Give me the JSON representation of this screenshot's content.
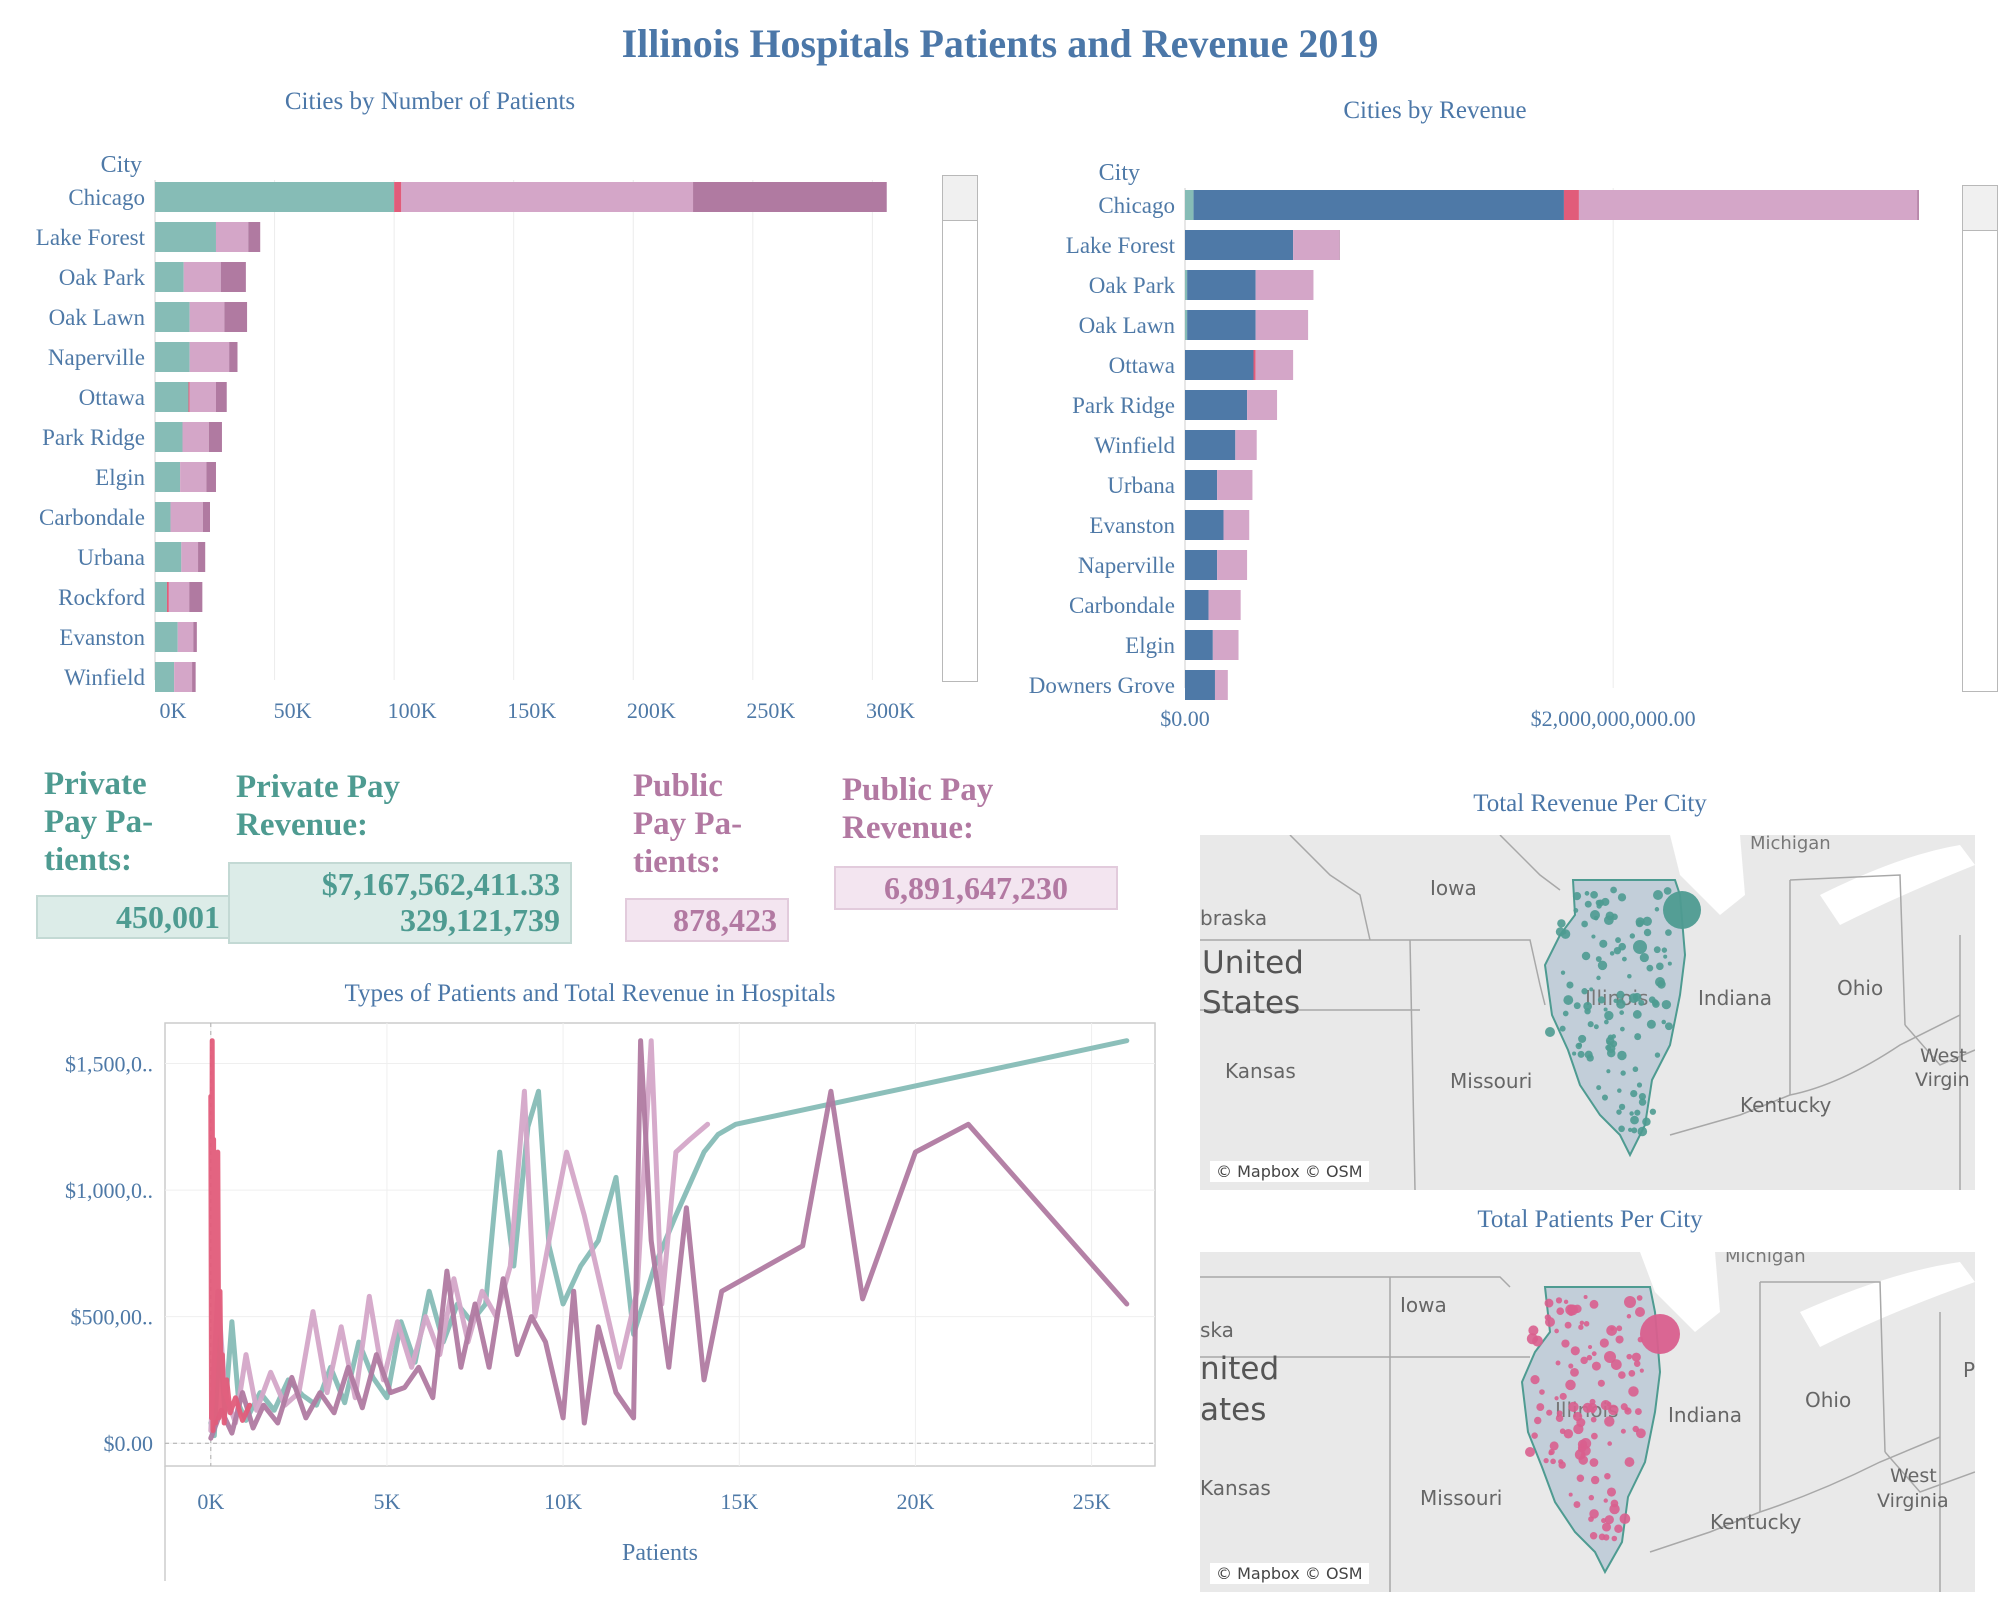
{
  "title": "Illinois Hospitals Patients and Revenue 2019",
  "colors": {
    "teal": "#86bcb6",
    "pink_light": "#d4a6c8",
    "mauve": "#b07aa1",
    "red": "#e15c7a",
    "blue": "#4e79a7"
  },
  "patients_chart": {
    "title": "Cities by Number of Patients",
    "header": "City",
    "ticks": [
      "0K",
      "50K",
      "100K",
      "150K",
      "200K",
      "250K",
      "300K"
    ],
    "tick_values": [
      0,
      50000,
      100000,
      150000,
      200000,
      250000,
      300000
    ],
    "xlim": [
      0,
      322000
    ]
  },
  "revenue_chart": {
    "title": "Cities by Revenue",
    "header": "City",
    "ticks": [
      "$0.00",
      "$2,000,000,000.00"
    ],
    "tick_values": [
      0,
      2000000000
    ],
    "xlim": [
      0,
      3620000000
    ]
  },
  "kpis": {
    "private_patients_label": "Private Pay Pa-tients:",
    "private_patients_value": "450,001",
    "private_revenue_label": "Private Pay Revenue:",
    "private_revenue_value_1": "$7,167,562,411.33",
    "private_revenue_value_2": "329,121,739",
    "public_patients_label": "Public Pay Pa-tients:",
    "public_patients_value": "878,423",
    "public_revenue_label": "Public Pay Revenue:",
    "public_revenue_value": "6,891,647,230"
  },
  "line_chart": {
    "title": "Types of Patients and Total Revenue in Hospitals",
    "xlabel": "Patients",
    "xticks": [
      "0K",
      "5K",
      "10K",
      "15K",
      "20K",
      "25K"
    ],
    "xtick_values": [
      0,
      5000,
      10000,
      15000,
      20000,
      25000
    ],
    "yticks": [
      "$0.00",
      "$500,00..",
      "$1,000,0..",
      "$1,500,0.."
    ],
    "ytick_values": [
      0,
      500000000,
      1000000000,
      1500000000
    ],
    "xlim": [
      -1300,
      26800
    ],
    "ylim": [
      -90000000,
      1660000000
    ]
  },
  "maps": {
    "revenue_title": "Total Revenue Per City",
    "patients_title": "Total Patients Per City",
    "credit": "© Mapbox © OSM",
    "map1_labels": {
      "michigan": "Michigan",
      "iowa": "Iowa",
      "nebraska": "braska",
      "united": "United",
      "states": "States",
      "kansas": "Kansas",
      "missouri": "Missouri",
      "illinois": "Illinois",
      "indiana": "Indiana",
      "ohio": "Ohio",
      "kentucky": "Kentucky",
      "west": "West",
      "virginia": "Virgin"
    },
    "map2_labels": {
      "michigan": "Michigan",
      "iowa": "Iowa",
      "nebraska": "ska",
      "united": "nited",
      "states": "ates",
      "kansas": "Kansas",
      "missouri": "Missouri",
      "illinois": "Illinois",
      "indiana": "Indiana",
      "ohio": "Ohio",
      "kentucky": "Kentucky",
      "west": "West",
      "virginia": "Virginia",
      "penn": "P"
    }
  },
  "chart_data": [
    {
      "type": "bar",
      "title": "Cities by Number of Patients",
      "stacked": true,
      "categories": [
        "Chicago",
        "Lake Forest",
        "Oak Park",
        "Oak Lawn",
        "Naperville",
        "Ottawa",
        "Park Ridge",
        "Elgin",
        "Carbondale",
        "Urbana",
        "Rockford",
        "Evanston",
        "Winfield"
      ],
      "series": [
        {
          "color": "#86bcb6",
          "values": [
            100000,
            25500,
            12000,
            14500,
            14500,
            14000,
            11500,
            10500,
            6500,
            11000,
            5000,
            9500,
            8000
          ]
        },
        {
          "color": "#e15c7a",
          "values": [
            3000,
            0,
            0,
            0,
            0,
            500,
            0,
            0,
            0,
            0,
            800,
            0,
            0
          ]
        },
        {
          "color": "#d4a6c8",
          "values": [
            122000,
            13500,
            15500,
            14500,
            16500,
            11000,
            11000,
            11000,
            13500,
            7000,
            8500,
            6500,
            7500
          ]
        },
        {
          "color": "#b07aa1",
          "values": [
            81000,
            5000,
            10500,
            9500,
            3500,
            4500,
            5500,
            4000,
            3000,
            3000,
            5500,
            1500,
            1500
          ]
        }
      ],
      "xlim": [
        0,
        322000
      ]
    },
    {
      "type": "bar",
      "title": "Cities by Revenue",
      "stacked": true,
      "categories": [
        "Chicago",
        "Lake Forest",
        "Oak Park",
        "Oak Lawn",
        "Ottawa",
        "Park Ridge",
        "Winfield",
        "Urbana",
        "Evanston",
        "Naperville",
        "Carbondale",
        "Elgin",
        "Downers Grove"
      ],
      "series": [
        {
          "color": "#86bcb6",
          "values": [
            40000000,
            0,
            10000000,
            10000000,
            0,
            0,
            0,
            0,
            0,
            0,
            0,
            0,
            0
          ]
        },
        {
          "color": "#4e79a7",
          "values": [
            1730000000,
            505000000,
            320000000,
            320000000,
            320000000,
            290000000,
            235000000,
            150000000,
            180000000,
            150000000,
            110000000,
            130000000,
            140000000
          ]
        },
        {
          "color": "#e15c7a",
          "values": [
            70000000,
            0,
            0,
            0,
            10000000,
            0,
            0,
            0,
            0,
            0,
            0,
            0,
            0
          ]
        },
        {
          "color": "#d4a6c8",
          "values": [
            1580000000,
            215000000,
            270000000,
            245000000,
            175000000,
            140000000,
            100000000,
            165000000,
            120000000,
            140000000,
            150000000,
            120000000,
            60000000
          ]
        },
        {
          "color": "#b07aa1",
          "values": [
            8000000,
            3000000,
            0,
            0,
            0,
            0,
            0,
            0,
            0,
            0,
            0,
            0,
            0
          ]
        }
      ],
      "xlim": [
        0,
        3620000000
      ]
    },
    {
      "type": "line",
      "title": "Types of Patients and Total Revenue in Hospitals",
      "xlabel": "Patients",
      "series": [
        {
          "color": "#86bcb6",
          "x": [
            0,
            100,
            250,
            400,
            600,
            800,
            1000,
            1400,
            1800,
            2200,
            2600,
            3000,
            3400,
            3800,
            4200,
            4600,
            5000,
            5400,
            5800,
            6200,
            6600,
            7000,
            7400,
            7800,
            8200,
            8600,
            9000,
            9300,
            9600,
            10000,
            10500,
            11000,
            11500,
            12000,
            12600,
            13200,
            14000,
            14400,
            14900,
            26000
          ],
          "y": [
            80000000,
            30000000,
            420000000,
            120000000,
            480000000,
            150000000,
            90000000,
            200000000,
            130000000,
            250000000,
            190000000,
            150000000,
            300000000,
            160000000,
            400000000,
            260000000,
            180000000,
            480000000,
            320000000,
            600000000,
            400000000,
            550000000,
            480000000,
            550000000,
            1150000000,
            700000000,
            1250000000,
            1390000000,
            780000000,
            550000000,
            700000000,
            800000000,
            1050000000,
            430000000,
            700000000,
            900000000,
            1150000000,
            1220000000,
            1260000000,
            1590000000
          ]
        },
        {
          "color": "#d4a6c8",
          "x": [
            0,
            200,
            400,
            700,
            1000,
            1300,
            1700,
            2100,
            2500,
            2900,
            3300,
            3700,
            4100,
            4500,
            4900,
            5300,
            5700,
            6100,
            6500,
            6900,
            7300,
            7700,
            8100,
            8500,
            8900,
            9200,
            9600,
            10100,
            10600,
            11100,
            11600,
            12100,
            12500,
            12800,
            13200,
            13600,
            14100
          ],
          "y": [
            50000000,
            600000000,
            200000000,
            80000000,
            350000000,
            130000000,
            280000000,
            150000000,
            200000000,
            520000000,
            200000000,
            460000000,
            180000000,
            580000000,
            250000000,
            480000000,
            300000000,
            500000000,
            350000000,
            650000000,
            400000000,
            600000000,
            500000000,
            700000000,
            1390000000,
            500000000,
            800000000,
            1150000000,
            900000000,
            600000000,
            300000000,
            600000000,
            1590000000,
            550000000,
            1150000000,
            1200000000,
            1260000000
          ]
        },
        {
          "color": "#b07aa1",
          "x": [
            0,
            300,
            600,
            900,
            1200,
            1500,
            1900,
            2300,
            2700,
            3100,
            3500,
            3900,
            4300,
            4700,
            5100,
            5500,
            5900,
            6300,
            6700,
            7100,
            7500,
            7900,
            8300,
            8700,
            9100,
            9500,
            10000,
            10300,
            10600,
            11000,
            11500,
            12000,
            12200,
            12500,
            13000,
            13500,
            14000,
            14500,
            16800,
            17600,
            18500,
            20000,
            21500,
            26000
          ],
          "y": [
            20000000,
            130000000,
            40000000,
            200000000,
            60000000,
            150000000,
            80000000,
            260000000,
            100000000,
            200000000,
            120000000,
            300000000,
            140000000,
            350000000,
            200000000,
            220000000,
            300000000,
            180000000,
            680000000,
            300000000,
            550000000,
            300000000,
            650000000,
            350000000,
            500000000,
            400000000,
            100000000,
            600000000,
            80000000,
            460000000,
            200000000,
            100000000,
            1590000000,
            800000000,
            300000000,
            930000000,
            250000000,
            600000000,
            780000000,
            1390000000,
            570000000,
            1150000000,
            1260000000,
            550000000
          ]
        },
        {
          "color": "#e15c7a",
          "x": [
            0,
            20,
            40,
            60,
            80,
            100,
            120,
            140,
            160,
            180,
            200,
            230,
            260,
            290,
            330,
            380,
            450,
            550,
            700,
            900,
            1100
          ],
          "y": [
            1370000000,
            100000000,
            1590000000,
            50000000,
            1200000000,
            200000000,
            900000000,
            80000000,
            700000000,
            150000000,
            1150000000,
            100000000,
            600000000,
            200000000,
            350000000,
            80000000,
            250000000,
            120000000,
            180000000,
            90000000,
            150000000
          ]
        }
      ],
      "xlim": [
        -1300,
        26800
      ],
      "ylim": [
        -90000000,
        1660000000
      ]
    }
  ]
}
